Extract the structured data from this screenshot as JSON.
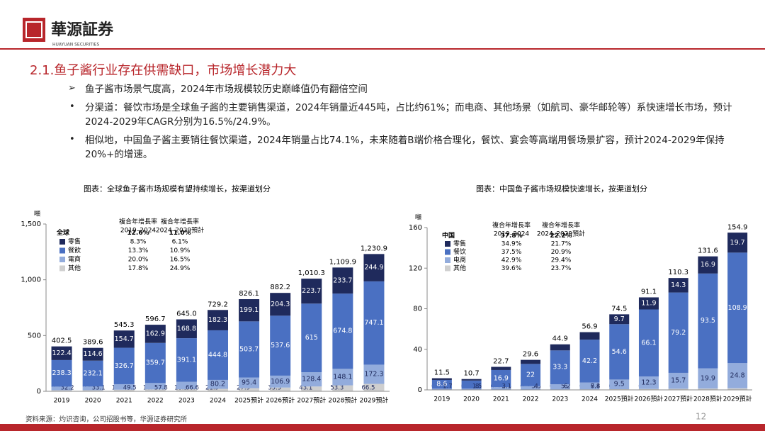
{
  "header": {
    "logo_text": "華源証券",
    "logo_sub": "HUAYUAN SECURITIES"
  },
  "heading": "2.1.鱼子酱行业存在供需缺口，市场增长潜力大",
  "bullets": [
    "鱼子酱市场景气度高，2024年市场规模较历史巅峰值仍有翻倍空间",
    "分渠道：餐饮市场是全球鱼子酱的主要销售渠道，2024年销量近445吨，占比约61%；而电商、其他场景（如航司、豪华邮轮等）系快速增长市场，预计2024-2029年CAGR分别为16.5%/24.9%。",
    "相似地，中国鱼子酱主要销往餐饮渠道，2024年销量占比74.1%，未来随着B端价格合理化，餐饮、宴会等高端用餐场景扩容，预计2024-2029年保持20%+的增速。"
  ],
  "chart_data": [
    {
      "type": "bar",
      "stacked": true,
      "title": "图表：全球鱼子酱市场规模有望持续增长，按渠道划分",
      "unit_label": "噸",
      "categories": [
        "2019",
        "2020",
        "2021",
        "2022",
        "2023",
        "2024",
        "2025預計",
        "2026預計",
        "2027預計",
        "2028預計",
        "2029預計"
      ],
      "series": [
        {
          "name": "零售",
          "color": "#1f2a5c",
          "values": [
            122.4,
            114.6,
            154.7,
            162.9,
            168.8,
            182.3,
            199.1,
            204.3,
            223.7,
            233.7,
            244.9
          ]
        },
        {
          "name": "餐飲",
          "color": "#4a70c2",
          "values": [
            238.3,
            232.1,
            326.7,
            359.7,
            391.1,
            444.8,
            503.7,
            537.6,
            615.0,
            674.8,
            747.1
          ]
        },
        {
          "name": "電商",
          "color": "#93acdc",
          "values": [
            32.2,
            33.1,
            49.5,
            57.8,
            66.6,
            80.2,
            95.4,
            106.9,
            128.4,
            148.1,
            172.3
          ]
        },
        {
          "name": "其他",
          "color": "#cfcfcf",
          "values": [
            9.7,
            9.8,
            14.3,
            16.4,
            18.5,
            21.9,
            27.9,
            33.5,
            43.1,
            53.3,
            66.5
          ]
        }
      ],
      "totals": [
        402.5,
        389.6,
        545.3,
        596.7,
        645.0,
        729.2,
        826.1,
        882.2,
        1010.3,
        1109.9,
        1230.9
      ],
      "total_labels": [
        "402.5",
        "389.6",
        "545.3",
        "596.7",
        "645.0",
        "729.2",
        "826.1",
        "882.2",
        "1,010.3",
        "1,109.9",
        "1,230.9"
      ],
      "ylim": [
        0,
        1500
      ],
      "yticks": [
        0,
        500,
        {
          "value": 1000,
          "label": "1,000"
        },
        {
          "value": 1500,
          "label": "1,500"
        }
      ],
      "legend": {
        "growth_headers": [
          "複合年增長率",
          "複合年增長率"
        ],
        "periods": [
          "2019–2024",
          "2024–2029預計"
        ],
        "total_name": "全球",
        "total_rates": [
          12.6,
          11.0
        ],
        "total_rate_labels": [
          "12.6%",
          "11.0%"
        ],
        "rates": [
          [
            8.3,
            6.1
          ],
          [
            13.3,
            10.9
          ],
          [
            20.0,
            16.5
          ],
          [
            17.8,
            24.9
          ]
        ],
        "rate_labels": [
          [
            "8.3%",
            "6.1%"
          ],
          [
            "13.3%",
            "10.9%"
          ],
          [
            "20.0%",
            "16.5%"
          ],
          [
            "17.8%",
            "24.9%"
          ]
        ]
      }
    },
    {
      "type": "bar",
      "stacked": true,
      "title": "图表：中国鱼子酱市场规模快速增长，按渠道划分",
      "unit_label": "噸",
      "categories": [
        "2019",
        "2020",
        "2021",
        "2022",
        "2023",
        "2024",
        "2025預計",
        "2026預計",
        "2027預計",
        "2028預計",
        "2029預計"
      ],
      "series": [
        {
          "name": "零售",
          "color": "#1f2a5c",
          "values": [
            1.7,
            1.5,
            3.1,
            4.0,
            6.0,
            7.4,
            9.7,
            11.9,
            14.3,
            16.9,
            19.7
          ]
        },
        {
          "name": "餐饮",
          "color": "#4a70c2",
          "values": [
            8.6,
            8.0,
            16.9,
            22.0,
            33.3,
            42.2,
            54.6,
            66.1,
            79.2,
            93.5,
            108.9
          ]
        },
        {
          "name": "电商",
          "color": "#93acdc",
          "values": [
            1.1,
            1.1,
            2.4,
            3.3,
            5.2,
            6.8,
            9.5,
            12.3,
            15.7,
            19.9,
            24.8
          ]
        },
        {
          "name": "其他",
          "color": "#cfcfcf",
          "values": [
            0.1,
            0.1,
            0.3,
            0.3,
            0.4,
            0.5,
            0.7,
            0.9,
            1.1,
            1.3,
            1.6
          ]
        }
      ],
      "totals": [
        11.5,
        10.7,
        22.7,
        29.6,
        44.9,
        56.9,
        74.5,
        91.1,
        110.3,
        131.6,
        154.9
      ],
      "ylim": [
        0,
        160
      ],
      "yticks": [
        0,
        40,
        80,
        120,
        160
      ],
      "legend": {
        "growth_headers": [
          "複合年增長率",
          "複合年增長率"
        ],
        "periods": [
          "2019–2024",
          "2024–2029預計"
        ],
        "total_name": "中国",
        "total_rates": [
          37.8,
          22.2
        ],
        "total_rate_labels": [
          "37.8%",
          "22.2%"
        ],
        "rates": [
          [
            34.9,
            21.7
          ],
          [
            37.5,
            20.9
          ],
          [
            42.9,
            29.4
          ],
          [
            39.6,
            23.7
          ]
        ],
        "rate_labels": [
          [
            "34.9%",
            "21.7%"
          ],
          [
            "37.5%",
            "20.9%"
          ],
          [
            "42.9%",
            "29.4%"
          ],
          [
            "39.6%",
            "23.7%"
          ]
        ]
      }
    }
  ],
  "source": "资料来源：灼识咨询，公司招股书等，华源证券研究所",
  "page_number": "12"
}
